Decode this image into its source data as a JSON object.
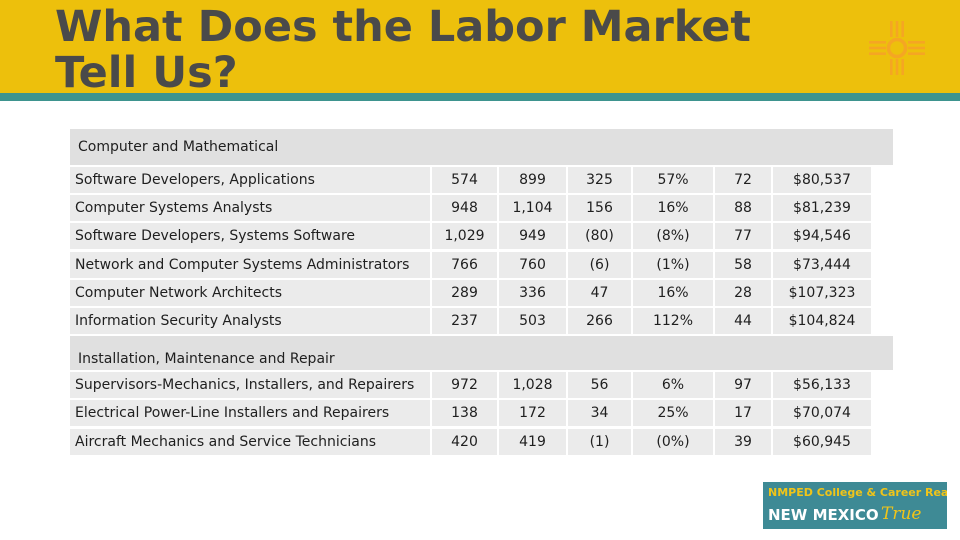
{
  "title": "What Does the Labor Market Tell Us?",
  "logo_icon": "zia-sun-symbol-icon",
  "colors": {
    "title_band": "#edc00c",
    "title_rule": "#3e948f",
    "cell_bg": "#ebebeb",
    "section_bg": "#e0e0e0",
    "badge_bg": "#3e8a95",
    "accent": "#f5a623"
  },
  "table": {
    "sections": [
      {
        "title": "Computer and Mathematical",
        "rows": [
          [
            "Software Developers, Applications",
            "574",
            "899",
            "325",
            "57%",
            "72",
            "$80,537"
          ],
          [
            "Computer Systems Analysts",
            "948",
            "1,104",
            "156",
            "16%",
            "88",
            "$81,239"
          ],
          [
            "Software Developers, Systems Software",
            "1,029",
            "949",
            "(80)",
            "(8%)",
            "77",
            "$94,546"
          ],
          [
            "Network and Computer Systems Administrators",
            "766",
            "760",
            "(6)",
            "(1%)",
            "58",
            "$73,444"
          ],
          [
            "Computer Network Architects",
            "289",
            "336",
            "47",
            "16%",
            "28",
            "$107,323"
          ],
          [
            "Information Security Analysts",
            "237",
            "503",
            "266",
            "112%",
            "44",
            "$104,824"
          ]
        ]
      },
      {
        "title": "Installation, Maintenance and Repair",
        "rows": [
          [
            "Supervisors-Mechanics, Installers, and Repairers",
            "972",
            "1,028",
            "56",
            "6%",
            "97",
            "$56,133"
          ],
          [
            "Electrical Power-Line Installers and Repairers",
            "138",
            "172",
            "34",
            "25%",
            "17",
            "$70,074"
          ],
          [
            "Aircraft Mechanics and Service Technicians",
            "420",
            "419",
            "(1)",
            "(0%)",
            "39",
            "$60,945"
          ]
        ]
      }
    ]
  },
  "badge": {
    "line1": "NMPED College & Career Readiness is",
    "line2": "NEW MEXICO",
    "line3": "True"
  }
}
